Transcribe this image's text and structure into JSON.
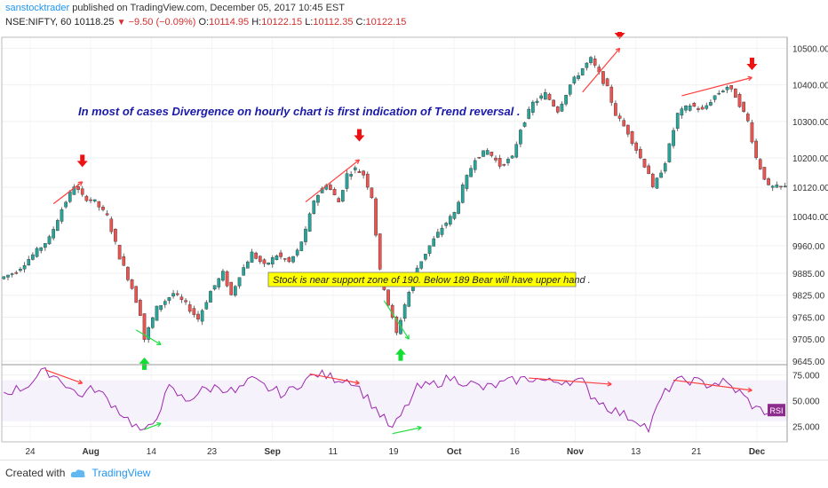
{
  "header": {
    "user": "sanstocktrader",
    "published_text": "published on TradingView.com, December 05, 2017 10:45 EST"
  },
  "symbol_bar": {
    "symbol": "NSE:NIFTY, 60",
    "price": "10118.25",
    "change": "−9.50 (−0.09%)",
    "o_label": "O:",
    "o_value": "10114.95",
    "h_label": "H:",
    "h_value": "10122.15",
    "l_label": "L:",
    "l_value": "10112.35",
    "c_label": "C:",
    "c_value": "10122.15"
  },
  "footer": {
    "created_with": "Created with",
    "brand": "TradingView"
  },
  "chart_data": {
    "type": "candlestick",
    "price_axis": {
      "ticks": [
        10500,
        10400,
        10300,
        10200,
        10120,
        10040,
        9960,
        9885,
        9825,
        9765,
        9705,
        9645
      ],
      "tick_labels": [
        "10500.00",
        "10400.00",
        "10300.00",
        "10200.00",
        "10120.00",
        "10040.00",
        "9960.00",
        "9885.00",
        "9825.00",
        "9765.00",
        "9705.00",
        "9645.00"
      ],
      "ylim": [
        9640,
        10530
      ]
    },
    "rsi_axis": {
      "ticks": [
        75,
        50,
        25
      ],
      "tick_labels": [
        "75.000",
        "50.000",
        "25.000"
      ],
      "ylim": [
        10,
        85
      ],
      "badge": "RSI"
    },
    "x_axis": {
      "labels": [
        "24",
        "Aug",
        "14",
        "23",
        "Sep",
        "11",
        "19",
        "Oct",
        "16",
        "Nov",
        "13",
        "21",
        "Dec"
      ],
      "bold": [
        false,
        true,
        false,
        false,
        true,
        false,
        false,
        true,
        false,
        true,
        false,
        false,
        true
      ]
    },
    "price_path": [
      [
        0,
        9870
      ],
      [
        4,
        9890
      ],
      [
        8,
        9935
      ],
      [
        12,
        9980
      ],
      [
        15,
        10060
      ],
      [
        18,
        10125
      ],
      [
        20,
        10095
      ],
      [
        23,
        10080
      ],
      [
        26,
        10040
      ],
      [
        29,
        9930
      ],
      [
        32,
        9845
      ],
      [
        34,
        9775
      ],
      [
        35,
        9705
      ],
      [
        38,
        9790
      ],
      [
        42,
        9830
      ],
      [
        45,
        9800
      ],
      [
        48,
        9760
      ],
      [
        51,
        9835
      ],
      [
        54,
        9885
      ],
      [
        56,
        9825
      ],
      [
        58,
        9880
      ],
      [
        61,
        9940
      ],
      [
        64,
        9905
      ],
      [
        67,
        9935
      ],
      [
        70,
        9915
      ],
      [
        72,
        9945
      ],
      [
        74,
        10000
      ],
      [
        76,
        10085
      ],
      [
        79,
        10130
      ],
      [
        82,
        10080
      ],
      [
        84,
        10155
      ],
      [
        86,
        10170
      ],
      [
        88,
        10155
      ],
      [
        90,
        10095
      ],
      [
        92,
        9890
      ],
      [
        94,
        9800
      ],
      [
        96,
        9720
      ],
      [
        98,
        9800
      ],
      [
        101,
        9900
      ],
      [
        104,
        9960
      ],
      [
        107,
        10010
      ],
      [
        110,
        10050
      ],
      [
        112,
        10120
      ],
      [
        115,
        10200
      ],
      [
        118,
        10220
      ],
      [
        121,
        10180
      ],
      [
        124,
        10200
      ],
      [
        126,
        10280
      ],
      [
        129,
        10350
      ],
      [
        132,
        10375
      ],
      [
        135,
        10330
      ],
      [
        138,
        10400
      ],
      [
        141,
        10445
      ],
      [
        143,
        10470
      ],
      [
        145,
        10430
      ],
      [
        147,
        10390
      ],
      [
        149,
        10320
      ],
      [
        152,
        10270
      ],
      [
        155,
        10200
      ],
      [
        157,
        10160
      ],
      [
        158,
        10115
      ],
      [
        161,
        10190
      ],
      [
        164,
        10320
      ],
      [
        167,
        10345
      ],
      [
        170,
        10330
      ],
      [
        173,
        10370
      ],
      [
        176,
        10395
      ],
      [
        178,
        10370
      ],
      [
        181,
        10300
      ],
      [
        183,
        10200
      ],
      [
        186,
        10120
      ],
      [
        189,
        10120
      ]
    ],
    "rsi_path": [
      [
        0,
        58
      ],
      [
        5,
        63
      ],
      [
        10,
        80
      ],
      [
        14,
        70
      ],
      [
        18,
        55
      ],
      [
        22,
        62
      ],
      [
        26,
        48
      ],
      [
        30,
        32
      ],
      [
        34,
        18
      ],
      [
        36,
        28
      ],
      [
        40,
        62
      ],
      [
        44,
        50
      ],
      [
        48,
        60
      ],
      [
        52,
        64
      ],
      [
        56,
        58
      ],
      [
        60,
        70
      ],
      [
        64,
        62
      ],
      [
        68,
        56
      ],
      [
        72,
        68
      ],
      [
        76,
        76
      ],
      [
        80,
        72
      ],
      [
        84,
        70
      ],
      [
        86,
        62
      ],
      [
        90,
        42
      ],
      [
        94,
        22
      ],
      [
        96,
        35
      ],
      [
        100,
        62
      ],
      [
        104,
        66
      ],
      [
        108,
        72
      ],
      [
        112,
        68
      ],
      [
        116,
        62
      ],
      [
        120,
        66
      ],
      [
        124,
        70
      ],
      [
        128,
        72
      ],
      [
        132,
        68
      ],
      [
        136,
        70
      ],
      [
        140,
        68
      ],
      [
        142,
        56
      ],
      [
        146,
        44
      ],
      [
        150,
        36
      ],
      [
        154,
        30
      ],
      [
        156,
        22
      ],
      [
        159,
        52
      ],
      [
        162,
        68
      ],
      [
        166,
        70
      ],
      [
        170,
        66
      ],
      [
        174,
        68
      ],
      [
        178,
        58
      ],
      [
        182,
        42
      ],
      [
        186,
        38
      ],
      [
        189,
        40
      ]
    ],
    "price_divergence_lines": [
      [
        [
          12,
          10075
        ],
        [
          19,
          10135
        ]
      ],
      [
        [
          73,
          10080
        ],
        [
          86,
          10195
        ]
      ],
      [
        [
          140,
          10380
        ],
        [
          149,
          10500
        ]
      ],
      [
        [
          164,
          10370
        ],
        [
          181,
          10420
        ]
      ]
    ],
    "price_bullish_lines": [
      [
        [
          92,
          9810
        ],
        [
          98,
          9705
        ]
      ]
    ],
    "rsi_bearish_lines": [
      [
        [
          10,
          80
        ],
        [
          19,
          67
        ]
      ],
      [
        [
          74,
          76
        ],
        [
          86,
          67
        ]
      ],
      [
        [
          127,
          72
        ],
        [
          147,
          66
        ]
      ],
      [
        [
          162,
          70
        ],
        [
          181,
          60
        ]
      ]
    ],
    "rsi_bullish_lines": [
      [
        [
          34,
          22
        ],
        [
          38,
          28
        ]
      ],
      [
        [
          94,
          18
        ],
        [
          101,
          24
        ]
      ]
    ],
    "price_bullish_arrow_lines": [
      [
        [
          32,
          9730
        ],
        [
          38,
          9690
        ]
      ]
    ],
    "red_down_markers": [
      [
        19,
        10180
      ],
      [
        86,
        10250
      ],
      [
        149,
        10530
      ],
      [
        181,
        10445
      ]
    ],
    "green_up_markers": [
      [
        34,
        9650
      ],
      [
        96,
        9675
      ]
    ],
    "annotations": {
      "blue_note": "In most of cases Divergence on hourly chart is first indication of Trend reversal .",
      "yellow_box": "Stock is near support zone of 190.  Below 189  Bear will have upper hand ."
    },
    "colors": {
      "up": "#26a69a",
      "down": "#ef5350",
      "rsi": "#9c27b0",
      "note_text": "#1a1aa8",
      "box_fill": "#ffff00",
      "divergence_red": "#ff3d3d",
      "divergence_green": "#22dd44"
    }
  }
}
